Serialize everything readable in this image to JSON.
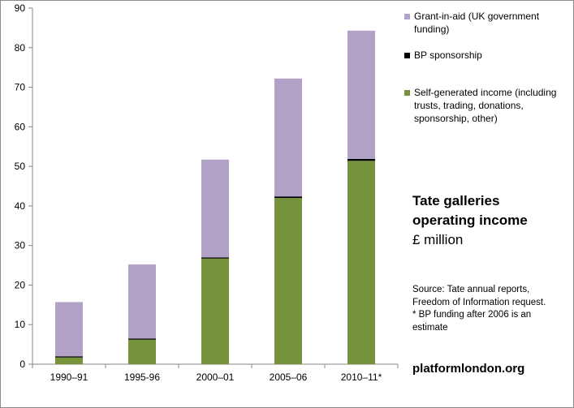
{
  "chart_data": {
    "type": "bar",
    "stacked": true,
    "categories": [
      "1990–91",
      "1995-96",
      "2000–01",
      "2005–06",
      "2010–11*"
    ],
    "series": [
      {
        "name": "Self-generated income (including trusts, trading, donations, sponsorship, other)",
        "color": "#76933c",
        "values": [
          1.7,
          6.2,
          26.7,
          42.0,
          51.4
        ]
      },
      {
        "name": "BP sponsorship",
        "color": "#000000",
        "values": [
          0.3,
          0.3,
          0.3,
          0.4,
          0.5
        ]
      },
      {
        "name": "Grant-in-aid (UK government funding)",
        "color": "#b3a2c7",
        "values": [
          13.7,
          18.7,
          24.7,
          29.8,
          32.4
        ]
      }
    ],
    "ylim": [
      0,
      90
    ],
    "yticks": [
      0,
      10,
      20,
      30,
      40,
      50,
      60,
      70,
      80,
      90
    ],
    "grid": false,
    "legend_position": "right"
  },
  "legend": {
    "grant": "Grant-in-aid (UK government funding)",
    "bp": "BP sponsorship",
    "self": "Self-generated income (including trusts, trading, donations, sponsorship, other)"
  },
  "title": {
    "line1": "Tate galleries",
    "line2": "operating income",
    "unit": "£ million"
  },
  "source": {
    "line1": "Source: Tate annual reports, Freedom of Information request.",
    "line2": "* BP funding after 2006 is an estimate"
  },
  "website": "platformlondon.org",
  "colors": {
    "grant": "#b3a2c7",
    "bp": "#000000",
    "self": "#76933c"
  }
}
